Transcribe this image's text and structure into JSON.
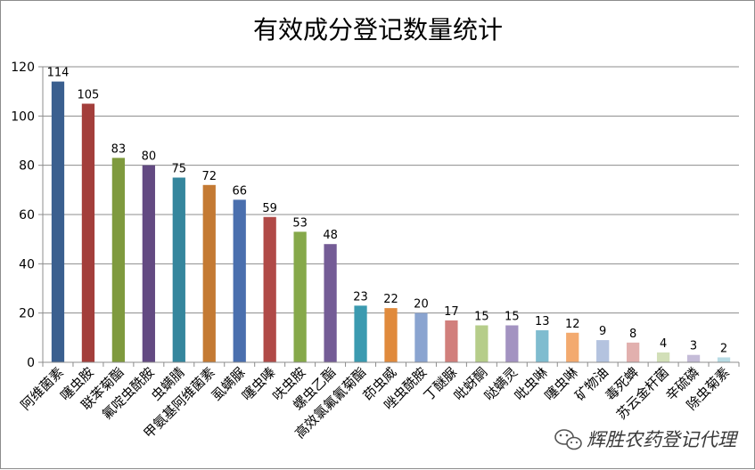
{
  "chart_data": {
    "type": "bar",
    "title": "有效成分登记数量统计",
    "xlabel": "",
    "ylabel": "",
    "ylim": [
      0,
      120
    ],
    "yticks": [
      0,
      20,
      40,
      60,
      80,
      100,
      120
    ],
    "grid": true,
    "legend": "none",
    "categories": [
      "阿维菌素",
      "噻虫胺",
      "联苯菊酯",
      "氟啶虫酰胺",
      "虫螨腈",
      "甲氨基阿维菌素",
      "虱螨脲",
      "噻虫嗪",
      "呋虫胺",
      "螺虫乙酯",
      "高效氯氟氰菊酯",
      "茚虫威",
      "唑虫酰胺",
      "丁醚脲",
      "吡蚜酮",
      "哒螨灵",
      "吡虫啉",
      "噻虫啉",
      "矿物油",
      "毒死蜱",
      "苏云金杆菌",
      "辛硫磷",
      "除虫菊素"
    ],
    "values": [
      114,
      105,
      83,
      80,
      75,
      72,
      66,
      59,
      53,
      48,
      23,
      22,
      20,
      17,
      15,
      15,
      13,
      12,
      9,
      8,
      4,
      3,
      2
    ],
    "colors": [
      "#3a5f8f",
      "#a33e3b",
      "#7f9a3e",
      "#634a82",
      "#35869d",
      "#c47a33",
      "#4a6fae",
      "#b04a47",
      "#86a94a",
      "#745c96",
      "#3b9ab0",
      "#e08a3c",
      "#8aa4d0",
      "#d17f7c",
      "#b6cd8a",
      "#a393c1",
      "#7fbccf",
      "#f3aa6f",
      "#b4c3df",
      "#e2b0ae",
      "#d2dfb8",
      "#c5bcd8",
      "#b8dbe4"
    ]
  },
  "watermark": {
    "icon": "wechat-icon",
    "text": "辉胜农药登记代理"
  }
}
